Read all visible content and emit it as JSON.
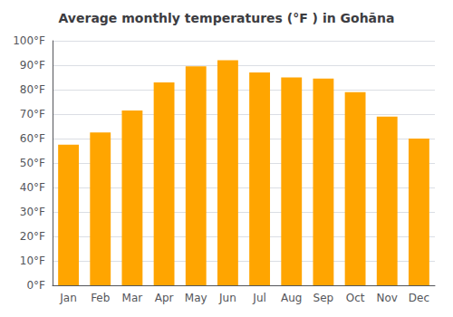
{
  "chart_data": {
    "type": "bar",
    "title": "Average monthly temperatures (°F ) in Gohāna",
    "categories": [
      "Jan",
      "Feb",
      "Mar",
      "Apr",
      "May",
      "Jun",
      "Jul",
      "Aug",
      "Sep",
      "Oct",
      "Nov",
      "Dec"
    ],
    "values": [
      57.5,
      62.5,
      71.5,
      83,
      89.5,
      92,
      87,
      85,
      84.5,
      79,
      69,
      60
    ],
    "color": "#FFA500",
    "ylim": [
      0,
      100
    ],
    "yticks": [
      {
        "value": 0,
        "label": "0°F"
      },
      {
        "value": 10,
        "label": "10°F"
      },
      {
        "value": 20,
        "label": "20°F"
      },
      {
        "value": 30,
        "label": "30°F"
      },
      {
        "value": 40,
        "label": "40°F"
      },
      {
        "value": 50,
        "label": "50°F"
      },
      {
        "value": 60,
        "label": "60°F"
      },
      {
        "value": 70,
        "label": "70°F"
      },
      {
        "value": 80,
        "label": "80°F"
      },
      {
        "value": 90,
        "label": "90°F"
      },
      {
        "value": 100,
        "label": "100°F"
      }
    ],
    "grid": true
  }
}
